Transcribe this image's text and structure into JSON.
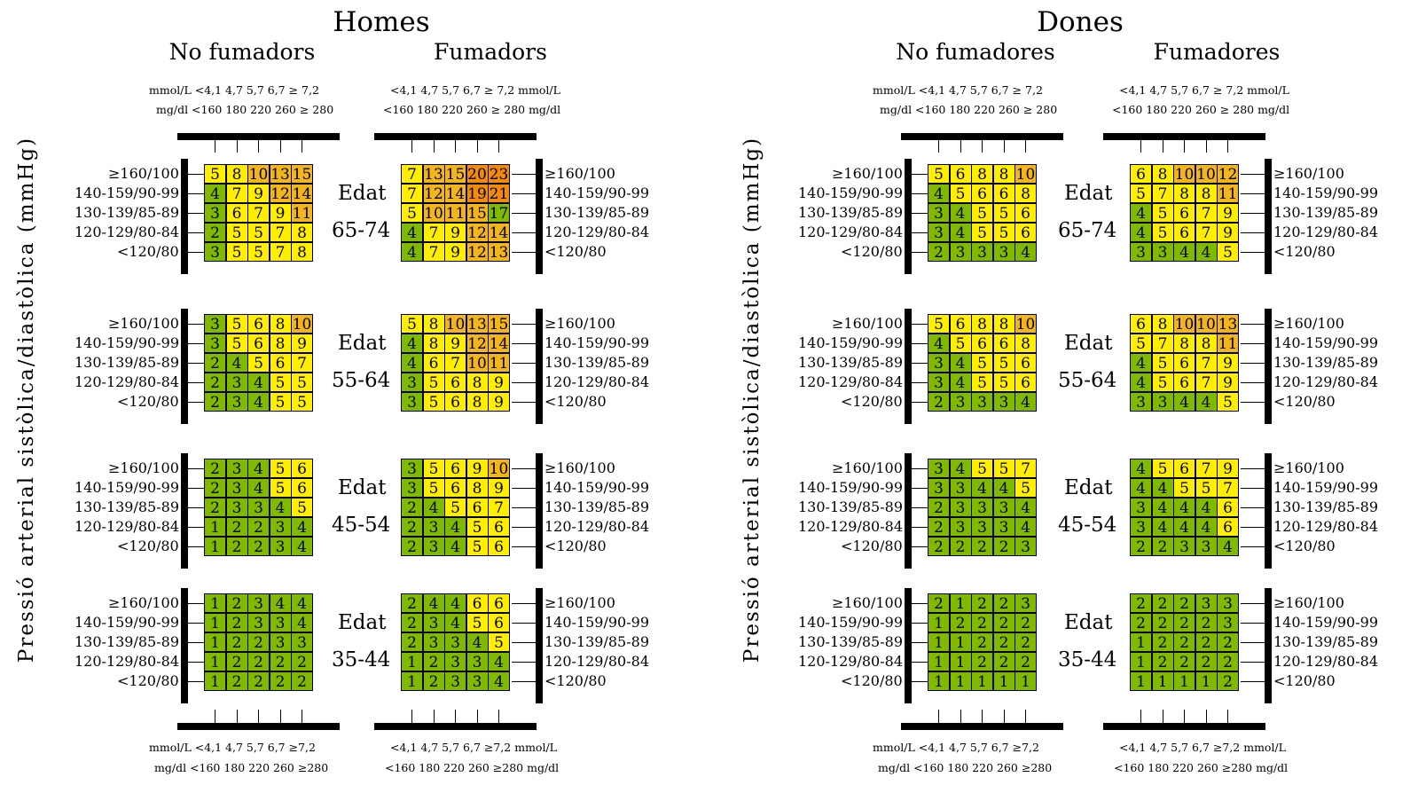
{
  "chart_data": {
    "type": "heatmap",
    "ylabel": "Pressió arterial sistòlica/diastòlica (mmHg)",
    "age_label": "Edat",
    "row_labels": [
      "≥160/100",
      "140-159/90-99",
      "130-139/85-89",
      "120-129/80-84",
      "<120/80"
    ],
    "cholesterol_mmol_labels": [
      "<4,1",
      "4,7",
      "5,7",
      "6,7",
      "≥ 7,2"
    ],
    "cholesterol_mgdl_labels": [
      "<160",
      "180",
      "220",
      "260",
      "≥ 280"
    ],
    "cholesterol_mmol_labels_bottom": [
      "<4,1",
      "4,7",
      "5,7",
      "6,7",
      "≥7,2"
    ],
    "cholesterol_mgdl_labels_bottom": [
      "<160",
      "180",
      "220",
      "260",
      "≥280"
    ],
    "unit_mmol": "mmol/L",
    "unit_mgdl": "mg/dl",
    "age_groups": [
      "65-74",
      "55-64",
      "45-54",
      "35-44"
    ],
    "color_scale": {
      "1": "#7fba00",
      "2": "#7fba00",
      "3": "#7fba00",
      "4": "#7fba00",
      "5": "#ffee00",
      "6": "#ffee00",
      "7": "#ffee00",
      "8": "#ffee00",
      "9": "#ffee00",
      "10": "#f2b51c",
      "11": "#f2b51c",
      "12": "#f2b51c",
      "13": "#f2b51c",
      "14": "#f2b51c",
      "15": "#f2b51c",
      "19": "#f28a0c",
      "20": "#f28a0c",
      "21": "#f28a0c",
      "23": "#f28a0c"
    },
    "sexes": [
      {
        "title": "Homes",
        "groups": [
          {
            "label": "No fumadors",
            "values": [
              [
                [
                  5,
                  8,
                  10,
                  13,
                  15
                ],
                [
                  4,
                  7,
                  9,
                  12,
                  14
                ],
                [
                  3,
                  6,
                  7,
                  9,
                  11
                ],
                [
                  2,
                  5,
                  5,
                  7,
                  8
                ],
                [
                  3,
                  5,
                  5,
                  7,
                  8
                ]
              ],
              [
                [
                  3,
                  5,
                  6,
                  8,
                  10
                ],
                [
                  3,
                  5,
                  6,
                  8,
                  9
                ],
                [
                  2,
                  4,
                  5,
                  6,
                  7
                ],
                [
                  2,
                  3,
                  4,
                  5,
                  5
                ],
                [
                  2,
                  3,
                  4,
                  5,
                  5
                ]
              ],
              [
                [
                  2,
                  3,
                  4,
                  5,
                  6
                ],
                [
                  2,
                  3,
                  4,
                  5,
                  6
                ],
                [
                  2,
                  3,
                  3,
                  4,
                  5
                ],
                [
                  1,
                  2,
                  2,
                  3,
                  4
                ],
                [
                  1,
                  2,
                  2,
                  3,
                  4
                ]
              ],
              [
                [
                  1,
                  2,
                  3,
                  4,
                  4
                ],
                [
                  1,
                  2,
                  3,
                  3,
                  4
                ],
                [
                  1,
                  2,
                  2,
                  3,
                  3
                ],
                [
                  1,
                  2,
                  2,
                  2,
                  2
                ],
                [
                  1,
                  2,
                  2,
                  2,
                  2
                ]
              ]
            ]
          },
          {
            "label": "Fumadors",
            "values": [
              [
                [
                  7,
                  13,
                  15,
                  20,
                  23
                ],
                [
                  7,
                  12,
                  14,
                  19,
                  21
                ],
                [
                  5,
                  10,
                  11,
                  15,
                  17
                ],
                [
                  4,
                  7,
                  9,
                  12,
                  14
                ],
                [
                  4,
                  7,
                  9,
                  12,
                  13
                ]
              ],
              [
                [
                  5,
                  8,
                  10,
                  13,
                  15
                ],
                [
                  4,
                  8,
                  9,
                  12,
                  14
                ],
                [
                  4,
                  6,
                  7,
                  10,
                  11
                ],
                [
                  3,
                  5,
                  6,
                  8,
                  9
                ],
                [
                  3,
                  5,
                  6,
                  8,
                  9
                ]
              ],
              [
                [
                  3,
                  5,
                  6,
                  9,
                  10
                ],
                [
                  3,
                  5,
                  6,
                  8,
                  9
                ],
                [
                  2,
                  4,
                  5,
                  6,
                  7
                ],
                [
                  2,
                  3,
                  4,
                  5,
                  6
                ],
                [
                  2,
                  3,
                  4,
                  5,
                  6
                ]
              ],
              [
                [
                  2,
                  4,
                  4,
                  6,
                  6
                ],
                [
                  2,
                  3,
                  4,
                  5,
                  6
                ],
                [
                  2,
                  3,
                  3,
                  4,
                  5
                ],
                [
                  1,
                  2,
                  3,
                  3,
                  4
                ],
                [
                  1,
                  2,
                  3,
                  3,
                  4
                ]
              ]
            ]
          }
        ]
      },
      {
        "title": "Dones",
        "groups": [
          {
            "label": "No fumadores",
            "values": [
              [
                [
                  5,
                  6,
                  8,
                  8,
                  10
                ],
                [
                  4,
                  5,
                  6,
                  6,
                  8
                ],
                [
                  3,
                  4,
                  5,
                  5,
                  6
                ],
                [
                  3,
                  4,
                  5,
                  5,
                  6
                ],
                [
                  2,
                  3,
                  3,
                  3,
                  4
                ]
              ],
              [
                [
                  5,
                  6,
                  8,
                  8,
                  10
                ],
                [
                  4,
                  5,
                  6,
                  6,
                  8
                ],
                [
                  3,
                  4,
                  5,
                  5,
                  6
                ],
                [
                  3,
                  4,
                  5,
                  5,
                  6
                ],
                [
                  2,
                  3,
                  3,
                  3,
                  4
                ]
              ],
              [
                [
                  3,
                  4,
                  5,
                  5,
                  7
                ],
                [
                  3,
                  3,
                  4,
                  4,
                  5
                ],
                [
                  2,
                  3,
                  3,
                  3,
                  4
                ],
                [
                  2,
                  3,
                  3,
                  3,
                  4
                ],
                [
                  2,
                  2,
                  2,
                  2,
                  3
                ]
              ],
              [
                [
                  2,
                  1,
                  2,
                  2,
                  3
                ],
                [
                  1,
                  2,
                  2,
                  2,
                  2
                ],
                [
                  1,
                  1,
                  2,
                  2,
                  2
                ],
                [
                  1,
                  1,
                  2,
                  2,
                  2
                ],
                [
                  1,
                  1,
                  1,
                  1,
                  1
                ]
              ]
            ]
          },
          {
            "label": "Fumadores",
            "values": [
              [
                [
                  6,
                  8,
                  10,
                  10,
                  12
                ],
                [
                  5,
                  7,
                  8,
                  8,
                  11
                ],
                [
                  4,
                  5,
                  6,
                  7,
                  9
                ],
                [
                  4,
                  5,
                  6,
                  7,
                  9
                ],
                [
                  3,
                  3,
                  4,
                  4,
                  5
                ]
              ],
              [
                [
                  6,
                  8,
                  10,
                  10,
                  13
                ],
                [
                  5,
                  7,
                  8,
                  8,
                  11
                ],
                [
                  4,
                  5,
                  6,
                  7,
                  9
                ],
                [
                  4,
                  5,
                  6,
                  7,
                  9
                ],
                [
                  3,
                  3,
                  4,
                  4,
                  5
                ]
              ],
              [
                [
                  4,
                  5,
                  6,
                  7,
                  9
                ],
                [
                  4,
                  4,
                  5,
                  5,
                  7
                ],
                [
                  3,
                  4,
                  4,
                  4,
                  6
                ],
                [
                  3,
                  4,
                  4,
                  4,
                  6
                ],
                [
                  2,
                  2,
                  3,
                  3,
                  4
                ]
              ],
              [
                [
                  2,
                  2,
                  2,
                  3,
                  3
                ],
                [
                  2,
                  2,
                  2,
                  2,
                  3
                ],
                [
                  1,
                  2,
                  2,
                  2,
                  2
                ],
                [
                  1,
                  2,
                  2,
                  2,
                  2
                ],
                [
                  1,
                  1,
                  1,
                  1,
                  2
                ]
              ]
            ]
          }
        ]
      }
    ]
  }
}
